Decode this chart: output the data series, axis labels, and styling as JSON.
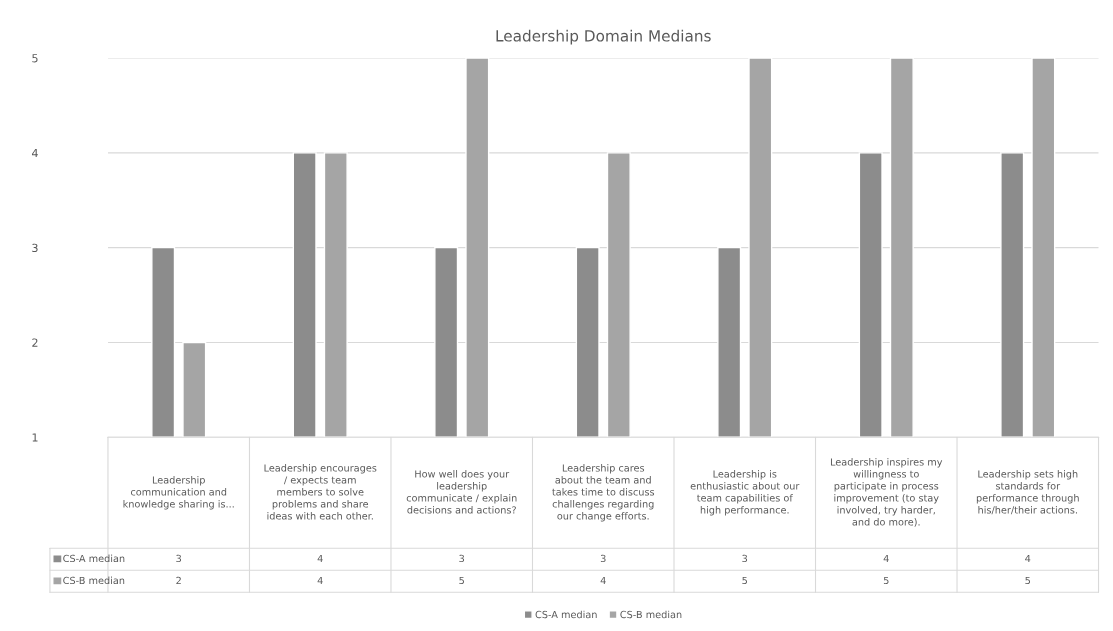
{
  "chart_data": {
    "type": "bar",
    "title": "Leadership Domain Medians",
    "categories": [
      "Leadership\ncommunication and\nknowledge sharing is...",
      "Leadership encourages\n/ expects team\nmembers to solve\nproblems and share\nideas with each other.",
      "How well does your\nleadership\ncommunicate / explain\ndecisions and actions?",
      "Leadership cares\nabout the team and\ntakes time to discuss\nchallenges regarding\nour change efforts.",
      "Leadership is\nenthusiastic about our\nteam capabilities of\nhigh performance.",
      "Leadership inspires my\nwillingness to\nparticipate in process\nimprovement (to stay\ninvolved, try harder,\nand do more).",
      "Leadership sets high\nstandards for\nperformance through\nhis/her/their actions."
    ],
    "series": [
      {
        "name": "CS-A median",
        "color": "#8c8c8c",
        "values": [
          3,
          4,
          3,
          3,
          3,
          4,
          4
        ]
      },
      {
        "name": "CS-B median",
        "color": "#a5a5a5",
        "values": [
          2,
          4,
          5,
          4,
          5,
          5,
          5
        ]
      }
    ],
    "ylim": [
      1,
      5
    ],
    "yticks": [
      1,
      2,
      3,
      4,
      5
    ],
    "grid": "y",
    "legend": "bottom",
    "data_labels": true
  }
}
